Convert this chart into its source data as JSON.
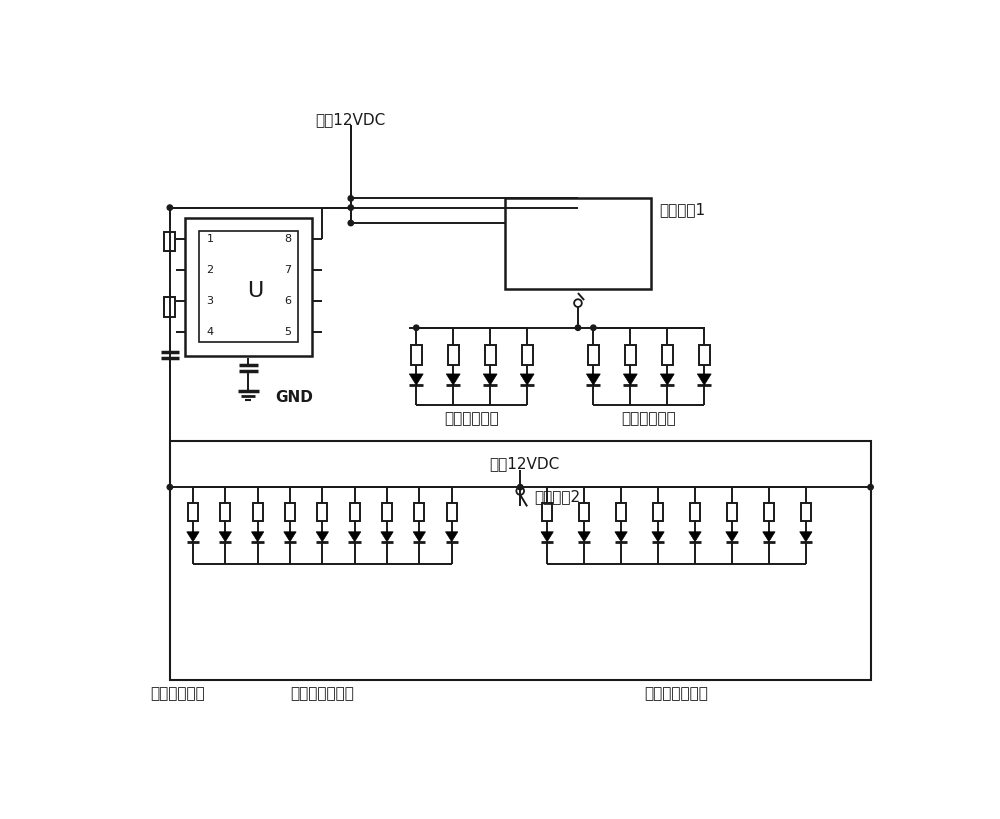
{
  "bg_color": "#ffffff",
  "line_color": "#1a1a1a",
  "line_width": 1.4,
  "text_color": "#1a1a1a",
  "font_size_label": 10,
  "font_size_small": 8,
  "labels": {
    "vdc_top": "车辆12VDC",
    "gnd": "GND",
    "switch1": "组合开关1",
    "left_turn": "左前后转向灯",
    "right_turn": "右前后转向灯",
    "vdc_mid": "车辆12VDC",
    "switch2": "组合开关2",
    "fuse": "车辆灯光保险",
    "low_beam": "左右前近光大灯",
    "high_beam": "左右前远光大灯"
  }
}
